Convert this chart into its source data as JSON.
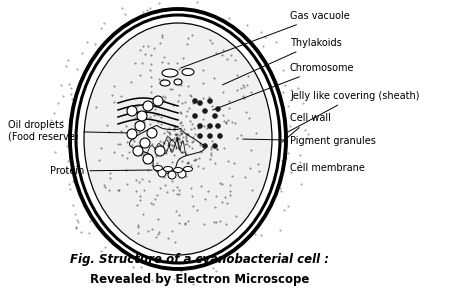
{
  "title_line1": "Fig. Structure of a cyanobacterial cell :",
  "title_line2": "Revealed by Electron Microscope",
  "bg_color": "#ffffff",
  "labels": {
    "gas_vacuole": "Gas vacuole",
    "thylakoids": "Thylakoids",
    "chromosome": "Chromosome",
    "jelly": "Jelly like covering (sheath)",
    "cell_wall": "Cell wall",
    "pigment": "Pigment granules",
    "cell_membrane": "Cell membrane",
    "oil_droplets": "Oil droplets\n(Food reserve)",
    "protein": "Protein"
  },
  "label_fontsize": 7,
  "title_fontsize1": 8.5,
  "title_fontsize2": 8.5
}
